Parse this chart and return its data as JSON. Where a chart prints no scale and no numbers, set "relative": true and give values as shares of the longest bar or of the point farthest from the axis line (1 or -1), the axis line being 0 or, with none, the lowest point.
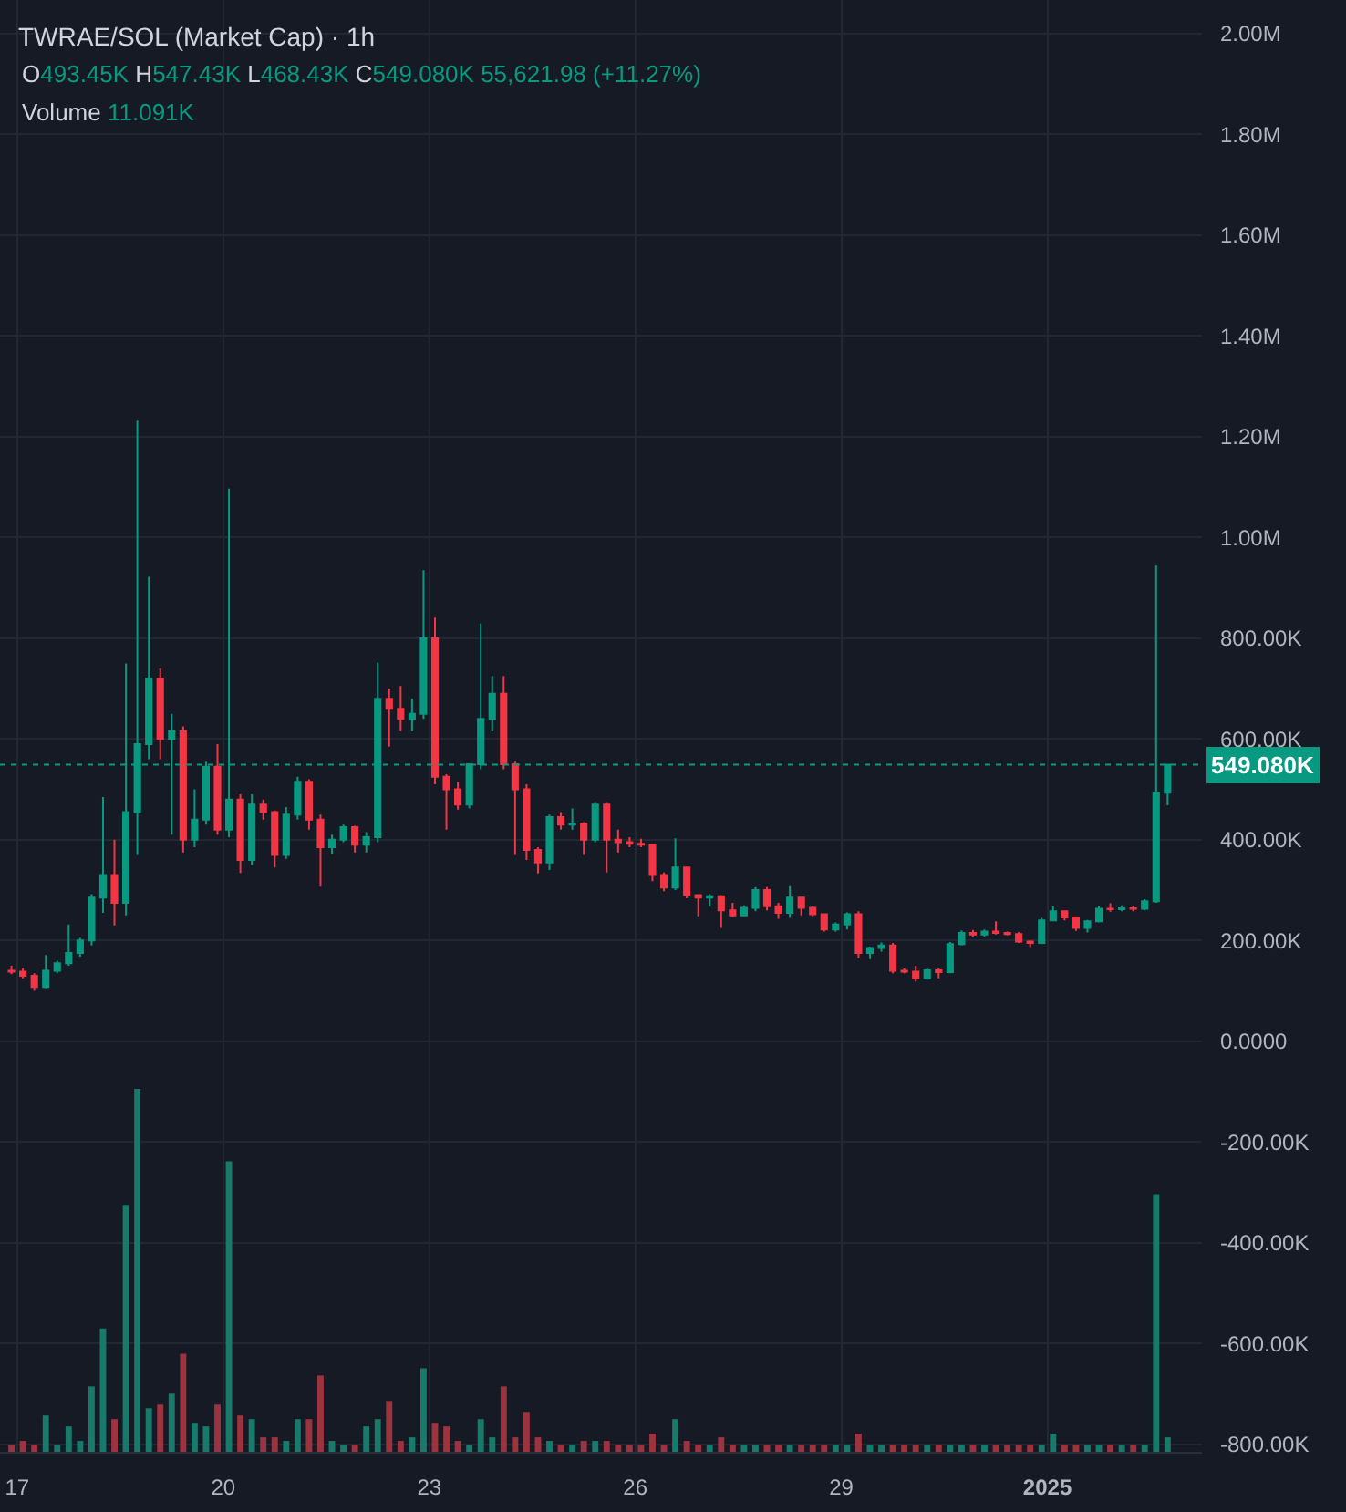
{
  "chart_data": [
    {
      "type": "candlestick",
      "title": "TWRAE/SOL (Market Cap) · 1h",
      "annotations": [
        "O493.45K H547.43K L468.43K C549.080K 55,621.98 (+11.27%)"
      ],
      "x": [
        "2024-12-16T22:00",
        "2024-12-17T02:00",
        "2024-12-17T06:00",
        "2024-12-17T10:00",
        "2024-12-17T14:00",
        "2024-12-17T18:00",
        "2024-12-17T22:00",
        "2024-12-18T02:00",
        "2024-12-18T06:00",
        "2024-12-18T10:00",
        "2024-12-18T14:00",
        "2024-12-18T18:00",
        "2024-12-18T22:00",
        "2024-12-19T02:00",
        "2024-12-19T06:00",
        "2024-12-19T10:00",
        "2024-12-19T14:00",
        "2024-12-19T18:00",
        "2024-12-19T22:00",
        "2024-12-20T02:00",
        "2024-12-20T06:00",
        "2024-12-20T10:00",
        "2024-12-20T14:00",
        "2024-12-20T18:00",
        "2024-12-20T22:00",
        "2024-12-21T02:00",
        "2024-12-21T06:00",
        "2024-12-21T10:00",
        "2024-12-21T14:00",
        "2024-12-21T18:00",
        "2024-12-21T22:00",
        "2024-12-22T02:00",
        "2024-12-22T06:00",
        "2024-12-22T10:00",
        "2024-12-22T14:00",
        "2024-12-22T18:00",
        "2024-12-22T22:00",
        "2024-12-23T02:00",
        "2024-12-23T06:00",
        "2024-12-23T10:00",
        "2024-12-23T14:00",
        "2024-12-23T18:00",
        "2024-12-23T22:00",
        "2024-12-24T02:00",
        "2024-12-24T06:00",
        "2024-12-24T10:00",
        "2024-12-24T14:00",
        "2024-12-24T18:00",
        "2024-12-24T22:00",
        "2024-12-25T02:00",
        "2024-12-25T06:00",
        "2024-12-25T10:00",
        "2024-12-25T14:00",
        "2024-12-25T18:00",
        "2024-12-25T22:00",
        "2024-12-26T02:00",
        "2024-12-26T06:00",
        "2024-12-26T10:00",
        "2024-12-26T14:00",
        "2024-12-26T18:00",
        "2024-12-26T22:00",
        "2024-12-27T02:00",
        "2024-12-27T06:00",
        "2024-12-27T10:00",
        "2024-12-27T14:00",
        "2024-12-27T18:00",
        "2024-12-27T22:00",
        "2024-12-28T02:00",
        "2024-12-28T06:00",
        "2024-12-28T10:00",
        "2024-12-28T14:00",
        "2024-12-28T18:00",
        "2024-12-28T22:00",
        "2024-12-29T02:00",
        "2024-12-29T06:00",
        "2024-12-29T10:00",
        "2024-12-29T14:00",
        "2024-12-29T18:00",
        "2024-12-29T22:00",
        "2024-12-30T02:00",
        "2024-12-30T06:00",
        "2024-12-30T10:00",
        "2024-12-30T14:00",
        "2024-12-30T18:00",
        "2024-12-30T22:00",
        "2024-12-31T02:00",
        "2024-12-31T06:00",
        "2024-12-31T10:00",
        "2024-12-31T14:00",
        "2024-12-31T18:00",
        "2024-12-31T22:00",
        "2025-01-01T02:00",
        "2025-01-01T06:00",
        "2025-01-01T10:00",
        "2025-01-01T14:00",
        "2025-01-01T18:00",
        "2025-01-01T22:00",
        "2025-01-02T02:00",
        "2025-01-02T06:00",
        "2025-01-02T10:00",
        "2025-01-02T14:00",
        "2025-01-02T18:00"
      ],
      "ohlc": [
        [
          140000,
          150000,
          133000,
          138000
        ],
        [
          138000,
          145000,
          125000,
          130000
        ],
        [
          130000,
          135000,
          100000,
          108000
        ],
        [
          108000,
          171000,
          105000,
          140000
        ],
        [
          140000,
          160000,
          135000,
          155000
        ],
        [
          155000,
          232000,
          150000,
          175000
        ],
        [
          175000,
          205000,
          168000,
          200000
        ],
        [
          200000,
          292000,
          190000,
          285000
        ],
        [
          285000,
          485000,
          255000,
          330000
        ],
        [
          330000,
          400000,
          230000,
          275000
        ],
        [
          275000,
          750000,
          250000,
          455000
        ],
        [
          455000,
          1232000,
          370000,
          590000
        ],
        [
          590000,
          922000,
          560000,
          720000
        ],
        [
          720000,
          740000,
          560000,
          600000
        ],
        [
          600000,
          650000,
          410000,
          615000
        ],
        [
          615000,
          625000,
          375000,
          400000
        ],
        [
          400000,
          500000,
          385000,
          440000
        ],
        [
          440000,
          555000,
          430000,
          545000
        ],
        [
          545000,
          590000,
          410000,
          420000
        ],
        [
          420000,
          1097000,
          405000,
          480000
        ],
        [
          480000,
          490000,
          334000,
          360000
        ],
        [
          360000,
          490000,
          350000,
          470000
        ],
        [
          470000,
          480000,
          440000,
          455000
        ],
        [
          455000,
          458000,
          345000,
          370000
        ],
        [
          370000,
          465000,
          362000,
          450000
        ],
        [
          450000,
          525000,
          440000,
          515000
        ],
        [
          515000,
          520000,
          420000,
          440000
        ],
        [
          440000,
          450000,
          307000,
          385000
        ],
        [
          385000,
          410000,
          372000,
          400000
        ],
        [
          400000,
          430000,
          395000,
          425000
        ],
        [
          425000,
          428000,
          375000,
          390000
        ],
        [
          390000,
          415000,
          375000,
          405000
        ],
        [
          405000,
          752000,
          395000,
          680000
        ],
        [
          680000,
          700000,
          585000,
          660000
        ],
        [
          660000,
          705000,
          615000,
          640000
        ],
        [
          640000,
          680000,
          615000,
          650000
        ],
        [
          650000,
          935000,
          640000,
          800000
        ],
        [
          800000,
          841000,
          510000,
          525000
        ],
        [
          525000,
          530000,
          420000,
          500000
        ],
        [
          500000,
          515000,
          460000,
          470000
        ],
        [
          470000,
          552000,
          462000,
          550000
        ],
        [
          550000,
          829000,
          540000,
          640000
        ],
        [
          640000,
          725000,
          615000,
          690000
        ],
        [
          690000,
          725000,
          540000,
          550000
        ],
        [
          550000,
          555000,
          370000,
          500000
        ],
        [
          500000,
          510000,
          360000,
          380000
        ],
        [
          380000,
          385000,
          333000,
          355000
        ],
        [
          355000,
          450000,
          340000,
          445000
        ],
        [
          445000,
          455000,
          420000,
          430000
        ],
        [
          430000,
          462000,
          420000,
          432000
        ],
        [
          432000,
          435000,
          370000,
          400000
        ],
        [
          400000,
          475000,
          395000,
          470000
        ],
        [
          470000,
          475000,
          335000,
          400000
        ],
        [
          400000,
          420000,
          375000,
          395000
        ],
        [
          395000,
          405000,
          385000,
          392000
        ],
        [
          392000,
          402000,
          385000,
          390000
        ],
        [
          390000,
          392000,
          318000,
          330000
        ],
        [
          330000,
          335000,
          298000,
          305000
        ],
        [
          305000,
          403000,
          300000,
          345000
        ],
        [
          345000,
          345000,
          284000,
          290000
        ],
        [
          290000,
          292000,
          248000,
          285000
        ],
        [
          285000,
          292000,
          268000,
          288000
        ],
        [
          288000,
          290000,
          225000,
          260000
        ],
        [
          260000,
          275000,
          247000,
          250000
        ],
        [
          250000,
          270000,
          248000,
          265000
        ],
        [
          265000,
          306000,
          258000,
          300000
        ],
        [
          300000,
          306000,
          260000,
          268000
        ],
        [
          268000,
          275000,
          243000,
          255000
        ],
        [
          255000,
          308000,
          245000,
          285000
        ],
        [
          285000,
          285000,
          250000,
          265000
        ],
        [
          265000,
          268000,
          248000,
          252000
        ],
        [
          252000,
          254000,
          218000,
          222000
        ],
        [
          222000,
          236000,
          218000,
          232000
        ],
        [
          232000,
          256000,
          222000,
          252000
        ],
        [
          252000,
          258000,
          165000,
          175000
        ],
        [
          175000,
          188000,
          163000,
          185000
        ],
        [
          185000,
          196000,
          178000,
          190000
        ],
        [
          190000,
          195000,
          135000,
          140000
        ],
        [
          140000,
          145000,
          135000,
          138000
        ],
        [
          138000,
          150000,
          118000,
          125000
        ],
        [
          125000,
          145000,
          122000,
          141000
        ],
        [
          141000,
          145000,
          125000,
          137000
        ],
        [
          137000,
          197000,
          135000,
          193000
        ],
        [
          193000,
          220000,
          190000,
          215000
        ],
        [
          215000,
          221000,
          208000,
          212000
        ],
        [
          212000,
          222000,
          208000,
          218000
        ],
        [
          218000,
          238000,
          212000,
          215000
        ],
        [
          215000,
          218000,
          210000,
          213000
        ],
        [
          213000,
          217000,
          195000,
          198000
        ],
        [
          198000,
          200000,
          187000,
          195000
        ],
        [
          195000,
          245000,
          193000,
          240000
        ],
        [
          240000,
          268000,
          238000,
          258000
        ],
        [
          258000,
          260000,
          240000,
          246000
        ],
        [
          246000,
          248000,
          219000,
          225000
        ],
        [
          225000,
          241000,
          216000,
          238000
        ],
        [
          238000,
          269000,
          236000,
          263000
        ],
        [
          263000,
          274000,
          257000,
          262000
        ],
        [
          262000,
          270000,
          258000,
          264000
        ],
        [
          264000,
          268000,
          258000,
          263000
        ],
        [
          263000,
          282000,
          260000,
          278000
        ],
        [
          278000,
          944000,
          275000,
          493450
        ],
        [
          493450,
          549080,
          468430,
          549080
        ]
      ],
      "colors": [
        "#f23645",
        "#f23645",
        "#f23645",
        "#089981",
        "#089981",
        "#089981",
        "#089981",
        "#089981",
        "#089981",
        "#f23645",
        "#089981",
        "#089981",
        "#089981",
        "#f23645",
        "#089981",
        "#f23645",
        "#089981",
        "#089981",
        "#f23645",
        "#089981",
        "#f23645",
        "#089981",
        "#f23645",
        "#f23645",
        "#089981",
        "#089981",
        "#f23645",
        "#f23645",
        "#089981",
        "#089981",
        "#f23645",
        "#089981",
        "#089981",
        "#f23645",
        "#f23645",
        "#089981",
        "#089981",
        "#f23645",
        "#f23645",
        "#f23645",
        "#089981",
        "#089981",
        "#089981",
        "#f23645",
        "#f23645",
        "#f23645",
        "#f23645",
        "#089981",
        "#f23645",
        "#089981",
        "#f23645",
        "#089981",
        "#f23645",
        "#f23645",
        "#f23645",
        "#f23645",
        "#f23645",
        "#f23645",
        "#089981",
        "#f23645",
        "#f23645",
        "#089981",
        "#f23645",
        "#f23645",
        "#089981",
        "#089981",
        "#f23645",
        "#f23645",
        "#089981",
        "#f23645",
        "#f23645",
        "#f23645",
        "#089981",
        "#089981",
        "#f23645",
        "#089981",
        "#089981",
        "#f23645",
        "#f23645",
        "#f23645",
        "#089981",
        "#f23645",
        "#089981",
        "#089981",
        "#f23645",
        "#089981",
        "#f23645",
        "#f23645",
        "#f23645",
        "#f23645",
        "#089981",
        "#089981",
        "#f23645",
        "#f23645",
        "#089981",
        "#089981",
        "#f23645",
        "#089981",
        "#f23645",
        "#089981",
        "#089981",
        "#089981"
      ],
      "xlim": [
        "2024-12-16T18:00",
        "2025-01-03T06:00"
      ],
      "xticks": [
        {
          "value": "2024-12-17",
          "label": null
        },
        {
          "value": "2024-12-20",
          "label": null
        },
        {
          "value": "2024-12-23",
          "label": null
        },
        {
          "value": "2024-12-26",
          "label": null
        },
        {
          "value": "2024-12-29",
          "label": null
        },
        {
          "value": "2025-01-01",
          "label": null
        }
      ],
      "ylim": [
        -815000,
        2067000
      ],
      "yticks": [
        {
          "value": 2000000,
          "label": "2.00M"
        },
        {
          "value": 1800000,
          "label": "1.80M"
        },
        {
          "value": 1600000,
          "label": "1.60M"
        },
        {
          "value": 1400000,
          "label": "1.40M"
        },
        {
          "value": 1200000,
          "label": "1.20M"
        },
        {
          "value": 1000000,
          "label": "1.00M"
        },
        {
          "value": 800000,
          "label": "800.00K"
        },
        {
          "value": 600000,
          "label": "600.00K"
        },
        {
          "value": 400000,
          "label": "400.00K"
        },
        {
          "value": 200000,
          "label": "200.00K"
        },
        {
          "value": 0,
          "label": "0.0000"
        },
        {
          "value": -200000,
          "label": "-200.00K"
        },
        {
          "value": -400000,
          "label": "-400.00K"
        },
        {
          "value": -600000,
          "label": "-600.00K"
        },
        {
          "value": -800000,
          "label": "-800.00K"
        }
      ],
      "ref_lines": [
        {
          "axis": "y",
          "value": 549080,
          "label": "549.080K",
          "color": "#089981",
          "line_style": "dotted"
        }
      ],
      "grid": true,
      "tick_labels": "y"
    },
    {
      "type": "bar",
      "relative": true,
      "annotations": [
        "Volume 11.091K"
      ],
      "x": [
        "2024-12-16T22:00",
        "2024-12-17T02:00",
        "2024-12-17T06:00",
        "2024-12-17T10:00",
        "2024-12-17T14:00",
        "2024-12-17T18:00",
        "2024-12-17T22:00",
        "2024-12-18T02:00",
        "2024-12-18T06:00",
        "2024-12-18T10:00",
        "2024-12-18T14:00",
        "2024-12-18T18:00",
        "2024-12-18T22:00",
        "2024-12-19T02:00",
        "2024-12-19T06:00",
        "2024-12-19T10:00",
        "2024-12-19T14:00",
        "2024-12-19T18:00",
        "2024-12-19T22:00",
        "2024-12-20T02:00",
        "2024-12-20T06:00",
        "2024-12-20T10:00",
        "2024-12-20T14:00",
        "2024-12-20T18:00",
        "2024-12-20T22:00",
        "2024-12-21T02:00",
        "2024-12-21T06:00",
        "2024-12-21T10:00",
        "2024-12-21T14:00",
        "2024-12-21T18:00",
        "2024-12-21T22:00",
        "2024-12-22T02:00",
        "2024-12-22T06:00",
        "2024-12-22T10:00",
        "2024-12-22T14:00",
        "2024-12-22T18:00",
        "2024-12-22T22:00",
        "2024-12-23T02:00",
        "2024-12-23T06:00",
        "2024-12-23T10:00",
        "2024-12-23T14:00",
        "2024-12-23T18:00",
        "2024-12-23T22:00",
        "2024-12-24T02:00",
        "2024-12-24T06:00",
        "2024-12-24T10:00",
        "2024-12-24T14:00",
        "2024-12-24T18:00",
        "2024-12-24T22:00",
        "2024-12-25T02:00",
        "2024-12-25T06:00",
        "2024-12-25T10:00",
        "2024-12-25T14:00",
        "2024-12-25T18:00",
        "2024-12-25T22:00",
        "2024-12-26T02:00",
        "2024-12-26T06:00",
        "2024-12-26T10:00",
        "2024-12-26T14:00",
        "2024-12-26T18:00",
        "2024-12-26T22:00",
        "2024-12-27T02:00",
        "2024-12-27T06:00",
        "2024-12-27T10:00",
        "2024-12-27T14:00",
        "2024-12-27T18:00",
        "2024-12-27T22:00",
        "2024-12-28T02:00",
        "2024-12-28T06:00",
        "2024-12-28T10:00",
        "2024-12-28T14:00",
        "2024-12-28T18:00",
        "2024-12-28T22:00",
        "2024-12-29T02:00",
        "2024-12-29T06:00",
        "2024-12-29T10:00",
        "2024-12-29T14:00",
        "2024-12-29T18:00",
        "2024-12-29T22:00",
        "2024-12-30T02:00",
        "2024-12-30T06:00",
        "2024-12-30T10:00",
        "2024-12-30T14:00",
        "2024-12-30T18:00",
        "2024-12-30T22:00",
        "2024-12-31T02:00",
        "2024-12-31T06:00",
        "2024-12-31T10:00",
        "2024-12-31T14:00",
        "2024-12-31T18:00",
        "2024-12-31T22:00",
        "2025-01-01T02:00",
        "2025-01-01T06:00",
        "2025-01-01T10:00",
        "2025-01-01T14:00",
        "2025-01-01T18:00",
        "2025-01-01T22:00",
        "2025-01-02T02:00",
        "2025-01-02T06:00",
        "2025-01-02T10:00",
        "2025-01-02T14:00",
        "2025-01-02T18:00"
      ],
      "values": [
        0.02,
        0.03,
        0.02,
        0.1,
        0.02,
        0.07,
        0.03,
        0.18,
        0.34,
        0.09,
        0.68,
        1,
        0.12,
        0.13,
        0.16,
        0.27,
        0.08,
        0.07,
        0.13,
        0.8,
        0.1,
        0.09,
        0.04,
        0.04,
        0.03,
        0.09,
        0.09,
        0.21,
        0.03,
        0.02,
        0.02,
        0.07,
        0.09,
        0.14,
        0.03,
        0.04,
        0.23,
        0.08,
        0.07,
        0.03,
        0.02,
        0.09,
        0.04,
        0.18,
        0.04,
        0.11,
        0.04,
        0.03,
        0.02,
        0.02,
        0.03,
        0.03,
        0.03,
        0.02,
        0.02,
        0.02,
        0.05,
        0.02,
        0.09,
        0.03,
        0.02,
        0.02,
        0.04,
        0.02,
        0.02,
        0.02,
        0.02,
        0.02,
        0.02,
        0.02,
        0.02,
        0.02,
        0.02,
        0.02,
        0.05,
        0.02,
        0.02,
        0.02,
        0.02,
        0.02,
        0.02,
        0.02,
        0.02,
        0.02,
        0.02,
        0.02,
        0.02,
        0.02,
        0.02,
        0.02,
        0.02,
        0.05,
        0.02,
        0.02,
        0.02,
        0.02,
        0.02,
        0.02,
        0.02,
        0.02,
        0.71,
        0.04
      ],
      "colors": [
        "#9c3440",
        "#9c3440",
        "#9c3440",
        "#177a6b",
        "#177a6b",
        "#177a6b",
        "#177a6b",
        "#177a6b",
        "#177a6b",
        "#9c3440",
        "#177a6b",
        "#177a6b",
        "#177a6b",
        "#9c3440",
        "#177a6b",
        "#9c3440",
        "#177a6b",
        "#177a6b",
        "#9c3440",
        "#177a6b",
        "#9c3440",
        "#177a6b",
        "#9c3440",
        "#9c3440",
        "#177a6b",
        "#177a6b",
        "#9c3440",
        "#9c3440",
        "#177a6b",
        "#177a6b",
        "#9c3440",
        "#177a6b",
        "#177a6b",
        "#9c3440",
        "#9c3440",
        "#177a6b",
        "#177a6b",
        "#9c3440",
        "#9c3440",
        "#9c3440",
        "#177a6b",
        "#177a6b",
        "#177a6b",
        "#9c3440",
        "#9c3440",
        "#9c3440",
        "#9c3440",
        "#177a6b",
        "#9c3440",
        "#177a6b",
        "#9c3440",
        "#177a6b",
        "#9c3440",
        "#9c3440",
        "#9c3440",
        "#9c3440",
        "#9c3440",
        "#9c3440",
        "#177a6b",
        "#9c3440",
        "#9c3440",
        "#177a6b",
        "#9c3440",
        "#9c3440",
        "#177a6b",
        "#177a6b",
        "#9c3440",
        "#9c3440",
        "#177a6b",
        "#9c3440",
        "#9c3440",
        "#9c3440",
        "#177a6b",
        "#177a6b",
        "#9c3440",
        "#177a6b",
        "#177a6b",
        "#9c3440",
        "#9c3440",
        "#9c3440",
        "#177a6b",
        "#9c3440",
        "#177a6b",
        "#177a6b",
        "#9c3440",
        "#177a6b",
        "#9c3440",
        "#9c3440",
        "#9c3440",
        "#9c3440",
        "#177a6b",
        "#177a6b",
        "#9c3440",
        "#9c3440",
        "#177a6b",
        "#177a6b",
        "#9c3440",
        "#177a6b",
        "#9c3440",
        "#177a6b",
        "#177a6b",
        "#177a6b"
      ],
      "xlim": [
        "2024-12-16T18:00",
        "2025-01-03T06:00"
      ],
      "xticks": [
        {
          "value": "2024-12-17",
          "label": "17"
        },
        {
          "value": "2024-12-20",
          "label": "20"
        },
        {
          "value": "2024-12-23",
          "label": "23"
        },
        {
          "value": "2024-12-26",
          "label": "26"
        },
        {
          "value": "2024-12-29",
          "label": "29"
        },
        {
          "value": "2025-01-01",
          "label": "2025"
        }
      ],
      "tick_labels": "x"
    }
  ]
}
